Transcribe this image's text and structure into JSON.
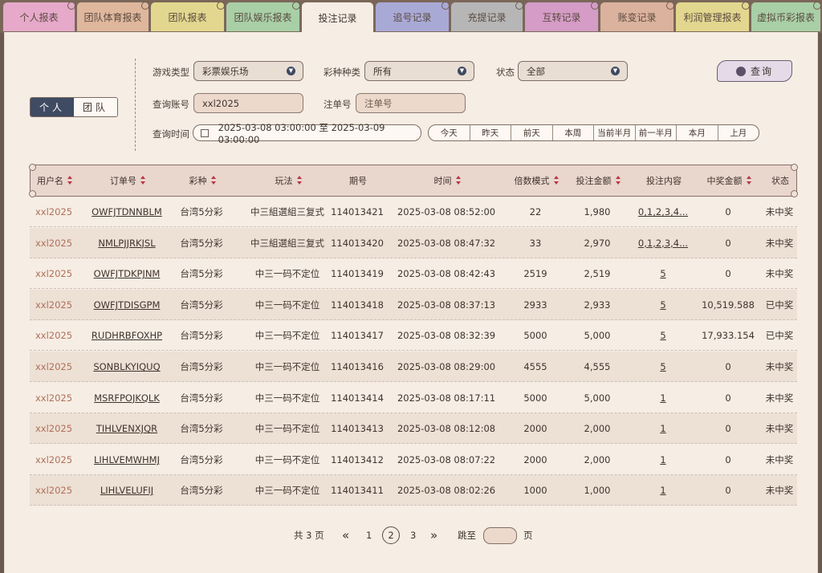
{
  "tabs": [
    {
      "label": "个人报表",
      "color": "#e6a9c9"
    },
    {
      "label": "团队体育报表",
      "color": "#dfb79d"
    },
    {
      "label": "团队报表",
      "color": "#e3d78f"
    },
    {
      "label": "团队娱乐报表",
      "color": "#a9cfa6"
    },
    {
      "label": "投注记录",
      "color": "#f6ede4"
    },
    {
      "label": "追号记录",
      "color": "#a9a9d6"
    },
    {
      "label": "充提记录",
      "color": "#b6b6b6"
    },
    {
      "label": "互转记录",
      "color": "#d49cc6"
    },
    {
      "label": "账变记录",
      "color": "#dbb29d"
    },
    {
      "label": "利润管理报表",
      "color": "#e3d78f"
    },
    {
      "label": "虚拟币彩报表",
      "color": "#a9cfa6"
    }
  ],
  "toggle": {
    "personal": "个人",
    "team": "团队"
  },
  "filters": {
    "game_type_label": "游戏类型",
    "game_type_value": "彩票娱乐场",
    "lottery_label": "彩种种类",
    "lottery_value": "所有",
    "status_label": "状态",
    "status_value": "全部",
    "account_label": "查询账号",
    "account_value": "xxl2025",
    "order_label": "注单号",
    "order_placeholder": "注单号",
    "time_label": "查询时间",
    "time_value": "2025-03-08 03:00:00 至 2025-03-09 03:00:00",
    "query_label": "查询"
  },
  "quick_ranges": [
    "今天",
    "昨天",
    "前天",
    "本周",
    "当前半月",
    "前一半月",
    "本月",
    "上月"
  ],
  "columns": [
    "用户名",
    "订单号",
    "彩种",
    "玩法",
    "期号",
    "时间",
    "倍数模式",
    "投注金额",
    "投注内容",
    "中奖金额",
    "状态"
  ],
  "sortable": [
    true,
    true,
    true,
    true,
    false,
    true,
    true,
    true,
    false,
    true,
    false
  ],
  "rows": [
    {
      "user": "xxl2025",
      "order": "OWFJTDNNBLM",
      "lottery": "台湾5分彩",
      "play": "中三組選組三复式",
      "issue": "114013421",
      "time": "2025-03-08 08:52:00",
      "mult": "22",
      "amount": "1,980",
      "content": "0,1,2,3,4...",
      "win": "0",
      "status": "未中奖"
    },
    {
      "user": "xxl2025",
      "order": "NMLPJJRKJSL",
      "lottery": "台湾5分彩",
      "play": "中三組選組三复式",
      "issue": "114013420",
      "time": "2025-03-08 08:47:32",
      "mult": "33",
      "amount": "2,970",
      "content": "0,1,2,3,4...",
      "win": "0",
      "status": "未中奖"
    },
    {
      "user": "xxl2025",
      "order": "OWFJTDKPJNM",
      "lottery": "台湾5分彩",
      "play": "中三一码不定位",
      "issue": "114013419",
      "time": "2025-03-08 08:42:43",
      "mult": "2519",
      "amount": "2,519",
      "content": "5",
      "win": "0",
      "status": "未中奖"
    },
    {
      "user": "xxl2025",
      "order": "OWFJTDISGPM",
      "lottery": "台湾5分彩",
      "play": "中三一码不定位",
      "issue": "114013418",
      "time": "2025-03-08 08:37:13",
      "mult": "2933",
      "amount": "2,933",
      "content": "5",
      "win": "10,519.588",
      "status": "已中奖"
    },
    {
      "user": "xxl2025",
      "order": "RUDHRBFOXHP",
      "lottery": "台湾5分彩",
      "play": "中三一码不定位",
      "issue": "114013417",
      "time": "2025-03-08 08:32:39",
      "mult": "5000",
      "amount": "5,000",
      "content": "5",
      "win": "17,933.154",
      "status": "已中奖"
    },
    {
      "user": "xxl2025",
      "order": "SONBLKYIQUQ",
      "lottery": "台湾5分彩",
      "play": "中三一码不定位",
      "issue": "114013416",
      "time": "2025-03-08 08:29:00",
      "mult": "4555",
      "amount": "4,555",
      "content": "5",
      "win": "0",
      "status": "未中奖"
    },
    {
      "user": "xxl2025",
      "order": "MSRFPOJKQLK",
      "lottery": "台湾5分彩",
      "play": "中三一码不定位",
      "issue": "114013414",
      "time": "2025-03-08 08:17:11",
      "mult": "5000",
      "amount": "5,000",
      "content": "1",
      "win": "0",
      "status": "未中奖"
    },
    {
      "user": "xxl2025",
      "order": "TIHLVENXJQR",
      "lottery": "台湾5分彩",
      "play": "中三一码不定位",
      "issue": "114013413",
      "time": "2025-03-08 08:12:08",
      "mult": "2000",
      "amount": "2,000",
      "content": "1",
      "win": "0",
      "status": "未中奖"
    },
    {
      "user": "xxl2025",
      "order": "LIHLVEMWHMJ",
      "lottery": "台湾5分彩",
      "play": "中三一码不定位",
      "issue": "114013412",
      "time": "2025-03-08 08:07:22",
      "mult": "2000",
      "amount": "2,000",
      "content": "1",
      "win": "0",
      "status": "未中奖"
    },
    {
      "user": "xxl2025",
      "order": "LIHLVELUFIJ",
      "lottery": "台湾5分彩",
      "play": "中三一码不定位",
      "issue": "114013411",
      "time": "2025-03-08 08:02:26",
      "mult": "1000",
      "amount": "1,000",
      "content": "1",
      "win": "0",
      "status": "未中奖"
    }
  ],
  "pager": {
    "total": "共 3 页",
    "pages": [
      "1",
      "2",
      "3"
    ],
    "current": "2",
    "jump_label": "跳至",
    "page_suffix": "页"
  },
  "colors": {
    "accent": "#3f4a63",
    "user_text": "#b0705a",
    "sort_arrow": "#b8364a"
  }
}
